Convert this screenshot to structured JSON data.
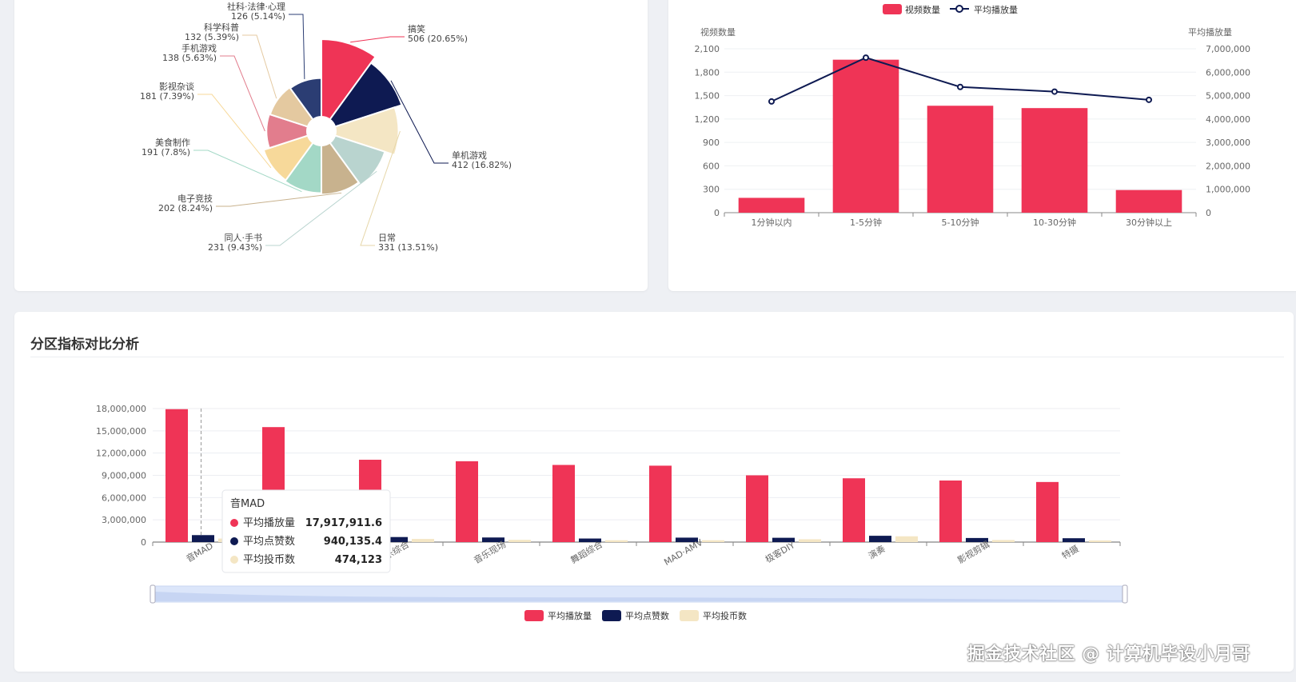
{
  "colors": {
    "red": "#ef3456",
    "navy": "#0e1a52",
    "cream": "#f4e6c4",
    "line": "#0e1a52"
  },
  "pie_chart": {
    "chart_data": {
      "type": "pie",
      "subtype": "nightingale-rose",
      "slices": [
        {
          "name": "搞笑",
          "value": 506,
          "percent": "20.65%",
          "color": "#ef3456"
        },
        {
          "name": "单机游戏",
          "value": 412,
          "percent": "16.82%",
          "color": "#0e1a52"
        },
        {
          "name": "日常",
          "value": 331,
          "percent": "13.51%",
          "color": "#f4e6c4"
        },
        {
          "name": "同人·手书",
          "value": 231,
          "percent": "9.43%",
          "color": "#b9d4cf"
        },
        {
          "name": "电子竞技",
          "value": 202,
          "percent": "8.24%",
          "color": "#c8b28e"
        },
        {
          "name": "美食制作",
          "value": 191,
          "percent": "7.8%",
          "color": "#a3d8c6"
        },
        {
          "name": "影视杂谈",
          "value": 181,
          "percent": "7.39%",
          "color": "#f7d99a"
        },
        {
          "name": "手机游戏",
          "value": 138,
          "percent": "5.63%",
          "color": "#e27d8d"
        },
        {
          "name": "科学科普",
          "value": 132,
          "percent": "5.39%",
          "color": "#e4c9a0"
        },
        {
          "name": "社科·法律·心理",
          "value": 126,
          "percent": "5.14%",
          "color": "#2b3d73"
        }
      ]
    }
  },
  "duration_chart": {
    "legend": {
      "bar_label": "视频数量",
      "line_label": "平均播放量"
    },
    "chart_data": {
      "type": "bar",
      "categories": [
        "1分钟以内",
        "1-5分钟",
        "5-10分钟",
        "10-30分钟",
        "30分钟以上"
      ],
      "series": [
        {
          "name": "视频数量",
          "type": "bar",
          "axis": "left",
          "values": [
            190,
            1960,
            1370,
            1340,
            290
          ]
        },
        {
          "name": "平均播放量",
          "type": "line",
          "axis": "right",
          "values": [
            4750000,
            6620000,
            5370000,
            5170000,
            4820000
          ]
        }
      ],
      "ylabel_left": "视频数量",
      "ylabel_right": "平均播放量",
      "ylim_left": [
        0,
        2100
      ],
      "ylim_right": [
        0,
        7000000
      ],
      "yticks_left": [
        "0",
        "300",
        "600",
        "900",
        "1,200",
        "1,500",
        "1,800",
        "2,100"
      ],
      "yticks_right": [
        "0",
        "1,000,000",
        "2,000,000",
        "3,000,000",
        "4,000,000",
        "5,000,000",
        "6,000,000",
        "7,000,000"
      ]
    }
  },
  "compare_chart": {
    "title": "分区指标对比分析",
    "tooltip": {
      "category": "音MAD",
      "rows": [
        {
          "label": "平均播放量",
          "value": "17,917,911.6",
          "color": "#ef3456"
        },
        {
          "label": "平均点赞数",
          "value": "940,135.4",
          "color": "#0e1a52"
        },
        {
          "label": "平均投币数",
          "value": "474,123",
          "color": "#f4e6c4"
        }
      ]
    },
    "chart_data": {
      "type": "bar",
      "categories": [
        "音MAD",
        "人力VOCALOID",
        "音乐综合",
        "音乐现场",
        "舞蹈综合",
        "MAD·AMV",
        "极客DIY",
        "演奏",
        "影视剪辑",
        "特摄"
      ],
      "series": [
        {
          "name": "平均播放量",
          "values": [
            17917911.6,
            15500000,
            11100000,
            10900000,
            10400000,
            10300000,
            9000000,
            8600000,
            8300000,
            8100000
          ]
        },
        {
          "name": "平均点赞数",
          "values": [
            940135.4,
            550000,
            680000,
            620000,
            480000,
            600000,
            580000,
            850000,
            550000,
            520000
          ]
        },
        {
          "name": "平均投币数",
          "values": [
            474123,
            300000,
            420000,
            300000,
            250000,
            250000,
            380000,
            780000,
            280000,
            220000
          ]
        }
      ],
      "ylim": [
        0,
        18000000
      ],
      "yticks": [
        "0",
        "3,000,000",
        "6,000,000",
        "9,000,000",
        "12,000,000",
        "15,000,000",
        "18,000,000"
      ]
    }
  },
  "watermark": "掘金技术社区 @ 计算机毕设小月哥"
}
